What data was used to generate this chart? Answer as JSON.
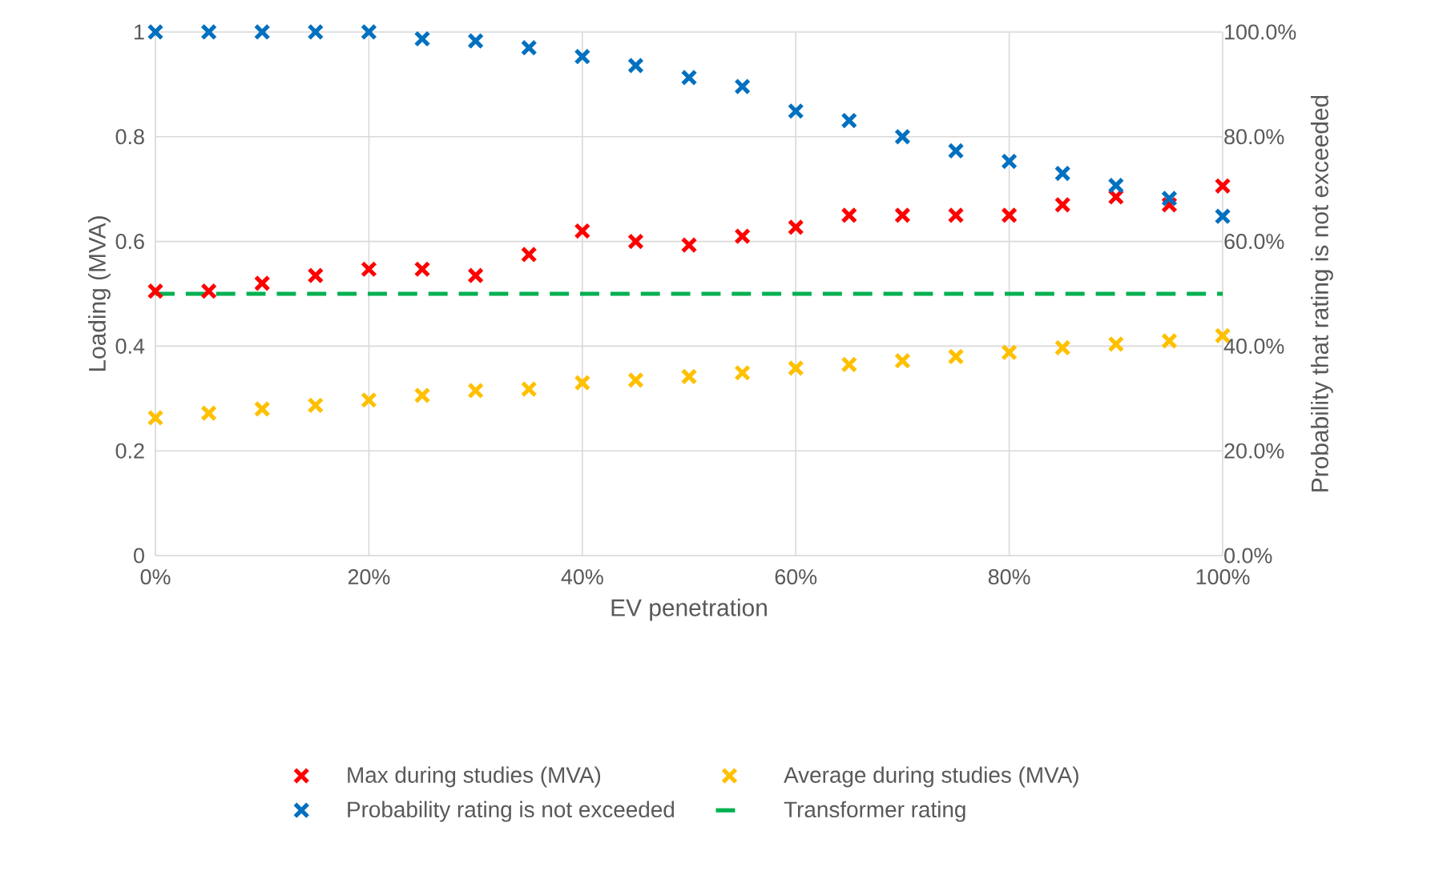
{
  "chart_data": {
    "type": "scatter",
    "xlabel": "EV penetration",
    "ylabel": "Loading (MVA)",
    "y2label": "Probability that rating is not exceeded",
    "x": [
      0,
      5,
      10,
      15,
      20,
      25,
      30,
      35,
      40,
      45,
      50,
      55,
      60,
      65,
      70,
      75,
      80,
      85,
      90,
      95,
      100
    ],
    "series": [
      {
        "name": "Max during studies (MVA)",
        "color": "#ff0000",
        "values": [
          0.505,
          0.505,
          0.52,
          0.535,
          0.547,
          0.547,
          0.535,
          0.575,
          0.62,
          0.6,
          0.593,
          0.61,
          0.627,
          0.65,
          0.65,
          0.65,
          0.65,
          0.67,
          0.685,
          0.67,
          0.706
        ]
      },
      {
        "name": "Average during studies (MVA)",
        "color": "#ffc000",
        "values": [
          0.263,
          0.272,
          0.28,
          0.287,
          0.297,
          0.306,
          0.315,
          0.318,
          0.33,
          0.335,
          0.342,
          0.349,
          0.358,
          0.365,
          0.372,
          0.38,
          0.388,
          0.397,
          0.404,
          0.41,
          0.42
        ]
      },
      {
        "name": "Probability rating is not exceeded",
        "axis": "y2",
        "color": "#0070c0",
        "values": [
          100,
          100,
          100,
          100,
          100,
          98.7,
          98.3,
          97,
          95.3,
          93.6,
          91.3,
          89.6,
          84.9,
          83.1,
          80,
          77.3,
          75.3,
          73,
          70.7,
          68.2,
          64.8
        ]
      },
      {
        "name": "Transformer rating",
        "type": "line",
        "line_style": "dashed",
        "marker": "none",
        "color": "#00b050",
        "x": [
          0,
          100
        ],
        "values": [
          0.5,
          0.5
        ]
      }
    ],
    "marker": "cross",
    "grid": true,
    "legend": "bottom",
    "xlim": [
      0,
      100
    ],
    "xticks": [
      {
        "value": 0,
        "label": "0%"
      },
      {
        "value": 20,
        "label": "20%"
      },
      {
        "value": 40,
        "label": "40%"
      },
      {
        "value": 60,
        "label": "60%"
      },
      {
        "value": 80,
        "label": "80%"
      },
      {
        "value": 100,
        "label": "100%"
      }
    ],
    "ylim": [
      0,
      1
    ],
    "yticks": [
      0,
      0.2,
      0.4,
      0.6,
      0.8,
      1
    ],
    "y2lim": [
      0,
      100
    ],
    "y2ticks": [
      {
        "value": 0,
        "label": "0.0%"
      },
      {
        "value": 20,
        "label": "20.0%"
      },
      {
        "value": 40,
        "label": "40.0%"
      },
      {
        "value": 60,
        "label": "60.0%"
      },
      {
        "value": 80,
        "label": "80.0%"
      },
      {
        "value": 100,
        "label": "100.0%"
      }
    ]
  }
}
